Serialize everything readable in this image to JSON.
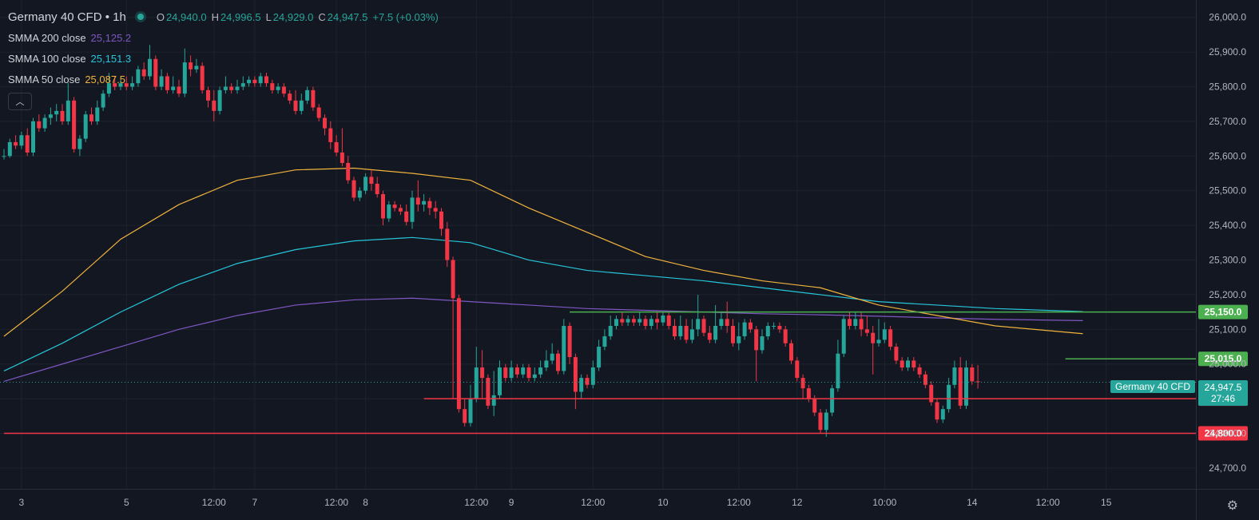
{
  "legend": {
    "symbol": "Germany 40 CFD",
    "interval": "1h",
    "open_label": "O",
    "open": "24,940.0",
    "high_label": "H",
    "high": "24,996.5",
    "low_label": "L",
    "low": "24,929.0",
    "close_label": "C",
    "close": "24,947.5",
    "change": "+7.5 (+0.03%)",
    "indicators": [
      {
        "name": "SMMA 200 close",
        "value": "25,125.2",
        "color": "#7e57c2"
      },
      {
        "name": "SMMA 100 close",
        "value": "25,151.3",
        "color": "#26c6da"
      },
      {
        "name": "SMMA 50 close",
        "value": "25,087.5",
        "color": "#f0b33c"
      }
    ]
  },
  "price_tag": {
    "value": "24,947.5",
    "countdown": "27:46",
    "symbol": "Germany 40 CFD"
  },
  "chart_data": {
    "type": "candlestick",
    "ylim": [
      24640,
      26050
    ],
    "yticks": [
      24700,
      24800,
      24900,
      25000,
      25100,
      25200,
      25300,
      25400,
      25500,
      25600,
      25700,
      25800,
      25900,
      26000
    ],
    "ytick_labels": [
      "24,700.0",
      "24,800.0",
      "24,900.0",
      "25,000.0",
      "25,100.0",
      "25,200.0",
      "25,300.0",
      "25,400.0",
      "25,500.0",
      "25,600.0",
      "25,700.0",
      "25,800.0",
      "25,900.0",
      "26,000.0"
    ],
    "xticks": [
      "3",
      "5",
      "12:00",
      "7",
      "12:00",
      "8",
      "12:00",
      "9",
      "12:00",
      "10",
      "12:00",
      "12",
      "10:00",
      "14",
      "12:00",
      "15"
    ],
    "xtick_index": [
      3,
      21,
      36,
      43,
      57,
      62,
      81,
      87,
      101,
      113,
      126,
      136,
      151,
      166,
      179,
      189
    ],
    "candles": [
      [
        25600,
        25600,
        25590,
        25620
      ],
      [
        25600,
        25640,
        25595,
        25650
      ],
      [
        25640,
        25630,
        25620,
        25660
      ],
      [
        25630,
        25660,
        25620,
        25670
      ],
      [
        25660,
        25610,
        25600,
        25680
      ],
      [
        25610,
        25700,
        25600,
        25710
      ],
      [
        25700,
        25680,
        25670,
        25720
      ],
      [
        25680,
        25710,
        25670,
        25720
      ],
      [
        25710,
        25720,
        25690,
        25740
      ],
      [
        25720,
        25730,
        25700,
        25750
      ],
      [
        25730,
        25700,
        25690,
        25750
      ],
      [
        25700,
        25760,
        25690,
        25810
      ],
      [
        25760,
        25620,
        25610,
        25770
      ],
      [
        25620,
        25650,
        25600,
        25660
      ],
      [
        25650,
        25720,
        25640,
        25730
      ],
      [
        25720,
        25700,
        25690,
        25740
      ],
      [
        25700,
        25740,
        25690,
        25760
      ],
      [
        25740,
        25780,
        25730,
        25790
      ],
      [
        25780,
        25810,
        25770,
        25840
      ],
      [
        25810,
        25800,
        25790,
        25830
      ],
      [
        25800,
        25810,
        25790,
        25820
      ],
      [
        25810,
        25800,
        25790,
        25830
      ],
      [
        25800,
        25810,
        25790,
        25830
      ],
      [
        25810,
        25850,
        25800,
        25860
      ],
      [
        25850,
        25830,
        25820,
        25870
      ],
      [
        25830,
        25880,
        25820,
        25920
      ],
      [
        25880,
        25800,
        25790,
        25890
      ],
      [
        25800,
        25830,
        25790,
        25850
      ],
      [
        25830,
        25790,
        25780,
        25840
      ],
      [
        25790,
        25800,
        25780,
        25830
      ],
      [
        25800,
        25780,
        25770,
        25820
      ],
      [
        25780,
        25870,
        25770,
        25910
      ],
      [
        25870,
        25850,
        25830,
        25890
      ],
      [
        25850,
        25860,
        25840,
        25880
      ],
      [
        25860,
        25790,
        25780,
        25870
      ],
      [
        25790,
        25760,
        25740,
        25800
      ],
      [
        25760,
        25730,
        25700,
        25790
      ],
      [
        25730,
        25790,
        25720,
        25800
      ],
      [
        25790,
        25800,
        25780,
        25830
      ],
      [
        25800,
        25790,
        25780,
        25810
      ],
      [
        25790,
        25800,
        25780,
        25820
      ],
      [
        25800,
        25810,
        25790,
        25830
      ],
      [
        25810,
        25820,
        25800,
        25830
      ],
      [
        25820,
        25810,
        25800,
        25830
      ],
      [
        25810,
        25830,
        25800,
        25840
      ],
      [
        25830,
        25810,
        25800,
        25840
      ],
      [
        25810,
        25790,
        25780,
        25820
      ],
      [
        25790,
        25800,
        25780,
        25810
      ],
      [
        25800,
        25780,
        25770,
        25810
      ],
      [
        25780,
        25760,
        25750,
        25790
      ],
      [
        25760,
        25730,
        25720,
        25790
      ],
      [
        25730,
        25760,
        25720,
        25780
      ],
      [
        25760,
        25790,
        25750,
        25800
      ],
      [
        25790,
        25740,
        25730,
        25800
      ],
      [
        25740,
        25710,
        25700,
        25750
      ],
      [
        25710,
        25680,
        25660,
        25720
      ],
      [
        25680,
        25640,
        25620,
        25700
      ],
      [
        25640,
        25610,
        25600,
        25660
      ],
      [
        25610,
        25580,
        25570,
        25680
      ],
      [
        25580,
        25530,
        25520,
        25600
      ],
      [
        25530,
        25480,
        25470,
        25540
      ],
      [
        25480,
        25500,
        25470,
        25510
      ],
      [
        25500,
        25540,
        25490,
        25550
      ],
      [
        25540,
        25520,
        25500,
        25560
      ],
      [
        25520,
        25490,
        25480,
        25540
      ],
      [
        25490,
        25420,
        25400,
        25500
      ],
      [
        25420,
        25460,
        25410,
        25470
      ],
      [
        25460,
        25450,
        25440,
        25470
      ],
      [
        25450,
        25440,
        25430,
        25460
      ],
      [
        25440,
        25410,
        25400,
        25460
      ],
      [
        25410,
        25480,
        25390,
        25500
      ],
      [
        25480,
        25460,
        25440,
        25530
      ],
      [
        25460,
        25470,
        25440,
        25490
      ],
      [
        25470,
        25450,
        25430,
        25480
      ],
      [
        25450,
        25440,
        25420,
        25470
      ],
      [
        25440,
        25390,
        25370,
        25450
      ],
      [
        25390,
        25300,
        25280,
        25410
      ],
      [
        25300,
        25190,
        24900,
        25310
      ],
      [
        25190,
        24870,
        24860,
        25200
      ],
      [
        24870,
        24830,
        24820,
        24900
      ],
      [
        24830,
        24900,
        24820,
        24940
      ],
      [
        24900,
        24990,
        24890,
        25050
      ],
      [
        24990,
        24960,
        24900,
        25040
      ],
      [
        24960,
        24880,
        24870,
        24970
      ],
      [
        24880,
        24910,
        24850,
        24980
      ],
      [
        24910,
        24990,
        24900,
        25010
      ],
      [
        24990,
        24960,
        24950,
        25000
      ],
      [
        24960,
        24990,
        24950,
        25010
      ],
      [
        24990,
        24970,
        24960,
        25000
      ],
      [
        24970,
        24990,
        24960,
        25000
      ],
      [
        24990,
        24960,
        24950,
        25000
      ],
      [
        24960,
        24970,
        24950,
        24990
      ],
      [
        24970,
        24990,
        24960,
        25010
      ],
      [
        24990,
        25010,
        24980,
        25040
      ],
      [
        25010,
        25030,
        25000,
        25060
      ],
      [
        25030,
        24980,
        24970,
        25040
      ],
      [
        24980,
        25110,
        24970,
        25130
      ],
      [
        25110,
        25020,
        25000,
        25120
      ],
      [
        25020,
        24920,
        24870,
        25030
      ],
      [
        24920,
        24960,
        24900,
        24970
      ],
      [
        24960,
        24940,
        24930,
        24970
      ],
      [
        24940,
        24990,
        24930,
        25010
      ],
      [
        24990,
        25050,
        24980,
        25070
      ],
      [
        25050,
        25080,
        25040,
        25100
      ],
      [
        25080,
        25110,
        25070,
        25140
      ],
      [
        25110,
        25130,
        25100,
        25140
      ],
      [
        25130,
        25120,
        25110,
        25150
      ],
      [
        25120,
        25130,
        25110,
        25140
      ],
      [
        25130,
        25120,
        25110,
        25140
      ],
      [
        25120,
        25130,
        25110,
        25150
      ],
      [
        25130,
        25110,
        25100,
        25140
      ],
      [
        25110,
        25130,
        25100,
        25140
      ],
      [
        25130,
        25120,
        25100,
        25150
      ],
      [
        25120,
        25140,
        25110,
        25150
      ],
      [
        25140,
        25110,
        25100,
        25150
      ],
      [
        25110,
        25080,
        25070,
        25130
      ],
      [
        25080,
        25110,
        25070,
        25140
      ],
      [
        25110,
        25070,
        25060,
        25130
      ],
      [
        25070,
        25100,
        25060,
        25130
      ],
      [
        25100,
        25130,
        25080,
        25200
      ],
      [
        25130,
        25090,
        25080,
        25140
      ],
      [
        25090,
        25070,
        25060,
        25110
      ],
      [
        25070,
        25110,
        25060,
        25170
      ],
      [
        25110,
        25130,
        25100,
        25150
      ],
      [
        25130,
        25110,
        25090,
        25180
      ],
      [
        25110,
        25060,
        25050,
        25130
      ],
      [
        25060,
        25080,
        25040,
        25120
      ],
      [
        25080,
        25120,
        25070,
        25130
      ],
      [
        25120,
        25100,
        25090,
        25130
      ],
      [
        25100,
        25040,
        24950,
        25110
      ],
      [
        25040,
        25080,
        25030,
        25100
      ],
      [
        25080,
        25110,
        25070,
        25120
      ],
      [
        25110,
        25110,
        25100,
        25120
      ],
      [
        25110,
        25100,
        25090,
        25120
      ],
      [
        25100,
        25060,
        25050,
        25110
      ],
      [
        25060,
        25010,
        25000,
        25070
      ],
      [
        25010,
        24960,
        24950,
        25020
      ],
      [
        24960,
        24930,
        24900,
        24970
      ],
      [
        24930,
        24900,
        24890,
        24940
      ],
      [
        24900,
        24860,
        24850,
        24910
      ],
      [
        24860,
        24810,
        24800,
        24870
      ],
      [
        24810,
        24860,
        24790,
        24870
      ],
      [
        24860,
        24930,
        24850,
        24940
      ],
      [
        24930,
        25030,
        24920,
        25070
      ],
      [
        25030,
        25130,
        25020,
        25140
      ],
      [
        25130,
        25110,
        25100,
        25150
      ],
      [
        25110,
        25130,
        25100,
        25150
      ],
      [
        25130,
        25100,
        25080,
        25150
      ],
      [
        25100,
        25090,
        25080,
        25140
      ],
      [
        25090,
        25060,
        24970,
        25110
      ],
      [
        25060,
        25070,
        25050,
        25130
      ],
      [
        25070,
        25100,
        25060,
        25120
      ],
      [
        25100,
        25050,
        25040,
        25110
      ],
      [
        25050,
        25010,
        25000,
        25060
      ],
      [
        25010,
        24990,
        24980,
        25020
      ],
      [
        24990,
        25010,
        24980,
        25020
      ],
      [
        25010,
        24990,
        24980,
        25020
      ],
      [
        24990,
        24970,
        24960,
        25000
      ],
      [
        24970,
        24940,
        24930,
        24980
      ],
      [
        24940,
        24890,
        24880,
        24950
      ],
      [
        24890,
        24840,
        24830,
        24900
      ],
      [
        24840,
        24870,
        24830,
        24880
      ],
      [
        24870,
        24940,
        24860,
        24960
      ],
      [
        24940,
        24990,
        24930,
        25010
      ],
      [
        24990,
        24880,
        24870,
        25020
      ],
      [
        24880,
        24990,
        24870,
        25010
      ],
      [
        24990,
        24950,
        24940,
        25000
      ],
      [
        24950,
        24948,
        24929,
        24997
      ]
    ],
    "smma50": [
      [
        0,
        25080
      ],
      [
        10,
        25210
      ],
      [
        20,
        25360
      ],
      [
        30,
        25460
      ],
      [
        40,
        25530
      ],
      [
        50,
        25560
      ],
      [
        60,
        25565
      ],
      [
        70,
        25550
      ],
      [
        80,
        25530
      ],
      [
        90,
        25450
      ],
      [
        100,
        25380
      ],
      [
        110,
        25310
      ],
      [
        120,
        25270
      ],
      [
        130,
        25240
      ],
      [
        140,
        25220
      ],
      [
        150,
        25170
      ],
      [
        160,
        25140
      ],
      [
        170,
        25110
      ],
      [
        185,
        25087.5
      ]
    ],
    "smma100": [
      [
        0,
        24980
      ],
      [
        10,
        25060
      ],
      [
        20,
        25150
      ],
      [
        30,
        25230
      ],
      [
        40,
        25290
      ],
      [
        50,
        25330
      ],
      [
        60,
        25355
      ],
      [
        70,
        25365
      ],
      [
        80,
        25350
      ],
      [
        90,
        25300
      ],
      [
        100,
        25270
      ],
      [
        110,
        25255
      ],
      [
        120,
        25240
      ],
      [
        130,
        25220
      ],
      [
        140,
        25200
      ],
      [
        150,
        25180
      ],
      [
        160,
        25170
      ],
      [
        170,
        25160
      ],
      [
        185,
        25151.3
      ]
    ],
    "smma200": [
      [
        0,
        24950
      ],
      [
        10,
        25000
      ],
      [
        20,
        25050
      ],
      [
        30,
        25100
      ],
      [
        40,
        25140
      ],
      [
        50,
        25170
      ],
      [
        60,
        25185
      ],
      [
        70,
        25190
      ],
      [
        80,
        25180
      ],
      [
        90,
        25170
      ],
      [
        100,
        25160
      ],
      [
        110,
        25155
      ],
      [
        120,
        25150
      ],
      [
        130,
        25145
      ],
      [
        140,
        25142
      ],
      [
        150,
        25138
      ],
      [
        160,
        25133
      ],
      [
        170,
        25129
      ],
      [
        185,
        25125.2
      ]
    ],
    "levels": [
      {
        "price": 25150,
        "label": "25,150.0",
        "color": "#4caf50",
        "from_index": 97
      },
      {
        "price": 25015,
        "label": "25,015.0",
        "color": "#4caf50",
        "from_index": 182
      },
      {
        "price": 24900,
        "label": "24,900.0",
        "color": "#f23645",
        "from_index": 72
      },
      {
        "price": 24800,
        "label": "24,800.0",
        "color": "#f23645",
        "from_index": 0
      }
    ],
    "last_price": 24947.5
  },
  "colors": {
    "up": "#26a69a",
    "down": "#f23645",
    "grid": "#1e222d",
    "axis_text": "#b2b5be",
    "background": "#131722"
  }
}
